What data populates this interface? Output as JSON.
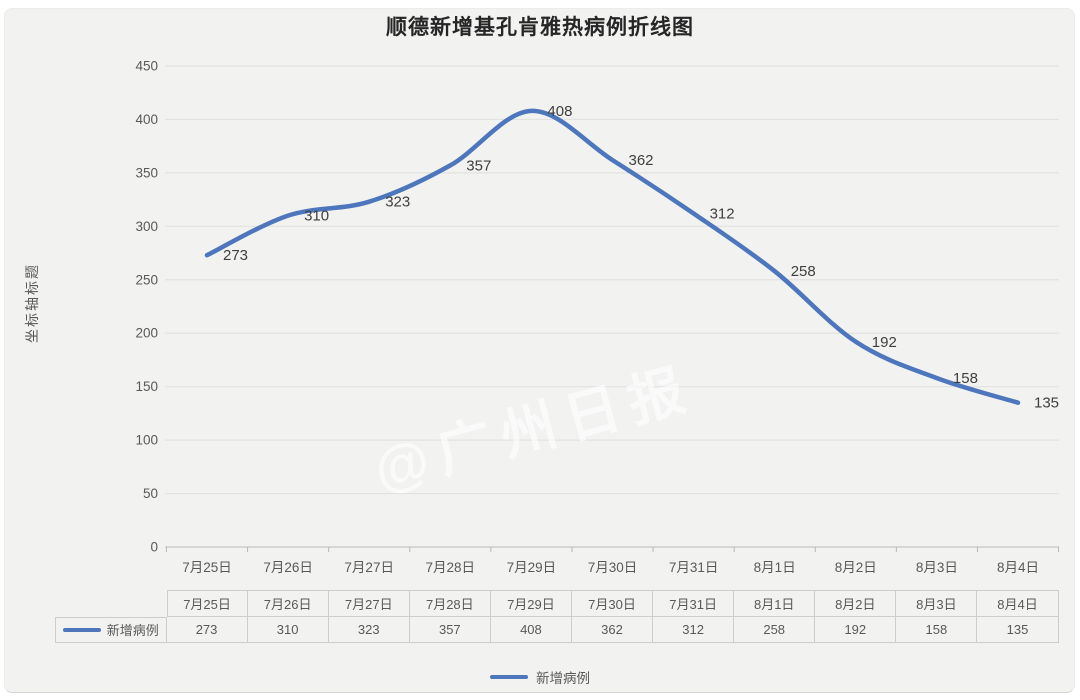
{
  "watermark": "@广州日报",
  "chart_data": {
    "type": "line",
    "title": "顺德新增基孔肯雅热病例折线图",
    "ylabel": "坐标轴标题",
    "xlabel": "",
    "categories": [
      "7月25日",
      "7月26日",
      "7月27日",
      "7月28日",
      "7月29日",
      "7月30日",
      "7月31日",
      "8月1日",
      "8月2日",
      "8月3日",
      "8月4日"
    ],
    "series": [
      {
        "name": "新增病例",
        "values": [
          273,
          310,
          323,
          357,
          408,
          362,
          312,
          258,
          192,
          158,
          135
        ]
      }
    ],
    "ylim": [
      0,
      450
    ],
    "ytick_step": 50,
    "grid": "horizontal-only",
    "smooth_line": true,
    "data_labels_position": "right-of-point",
    "legend_position": "bottom",
    "has_data_table": true,
    "colors": {
      "line": "#4d76bd",
      "grid": "#e2e2e1",
      "axis": "#c6c6c6",
      "tick": "#b8b8b8",
      "axis_text": "#595959",
      "data_label_text": "#3f3f3f",
      "table_border": "#cdcdcd",
      "title_text": "#262626",
      "card_bg": "#f2f2f1"
    }
  },
  "legend": {
    "label": "新增病例"
  }
}
